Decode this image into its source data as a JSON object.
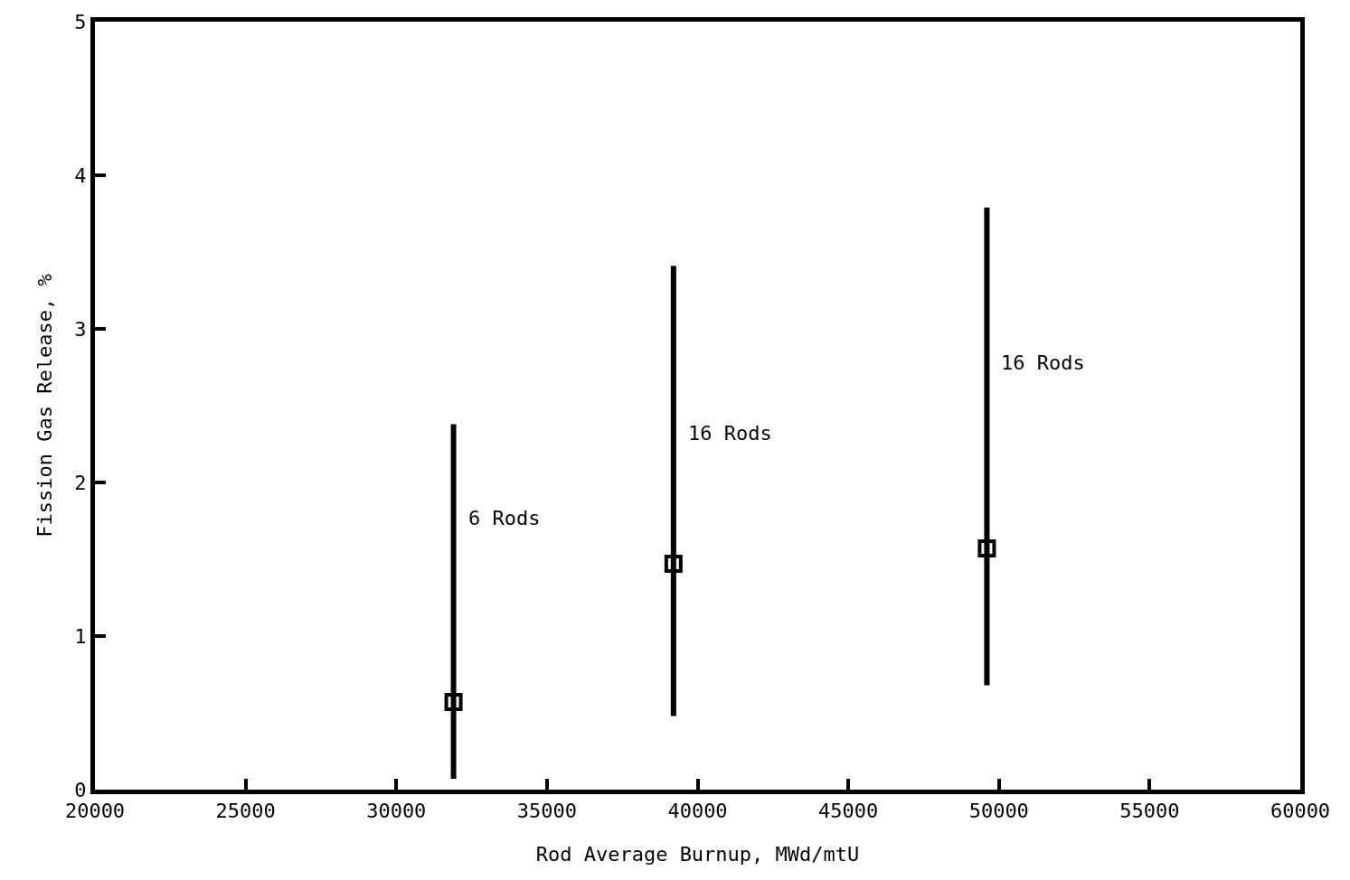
{
  "chart_data": {
    "type": "scatter",
    "xlabel": "Rod Average Burnup, MWd/mtU",
    "ylabel": "Fission Gas Release, %",
    "x": [
      31900,
      39200,
      49600
    ],
    "values": [
      0.57,
      1.47,
      1.57
    ],
    "errors": [
      [
        0.07,
        2.38
      ],
      [
        0.48,
        3.41
      ],
      [
        0.68,
        3.79
      ]
    ],
    "color": "#000000",
    "marker": "square",
    "xlim": [
      20000,
      60000
    ],
    "xticks": [
      20000,
      25000,
      30000,
      35000,
      40000,
      45000,
      50000,
      55000,
      60000
    ],
    "ylim": [
      0,
      5
    ],
    "yticks": [
      0,
      1,
      2,
      3,
      4,
      5
    ],
    "annotations": [
      {
        "text": "6 Rods",
        "x": 31900,
        "y": 1.77
      },
      {
        "text": "16 Rods",
        "x": 39200,
        "y": 2.32
      },
      {
        "text": "16 Rods",
        "x": 49600,
        "y": 2.78
      }
    ]
  }
}
